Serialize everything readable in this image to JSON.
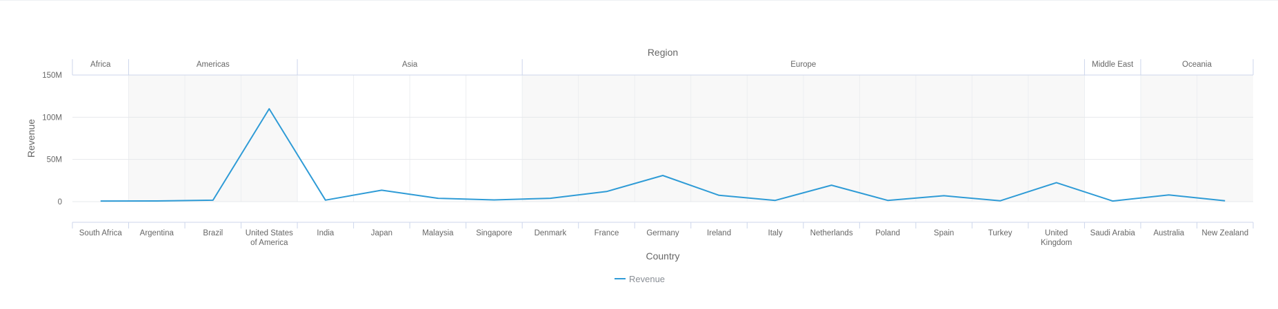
{
  "chart_data": {
    "type": "line",
    "title": "",
    "xlabel": "Country",
    "ylabel": "Revenue",
    "group_axis_label": "Region",
    "ylim": [
      0,
      150000000
    ],
    "yticks": [
      {
        "value": 0,
        "label": "0"
      },
      {
        "value": 50000000,
        "label": "50M"
      },
      {
        "value": 100000000,
        "label": "100M"
      },
      {
        "value": 150000000,
        "label": "150M"
      }
    ],
    "grid": true,
    "legend_position": "bottom",
    "regions": [
      {
        "name": "Africa",
        "count": 1
      },
      {
        "name": "Americas",
        "count": 3
      },
      {
        "name": "Asia",
        "count": 4
      },
      {
        "name": "Europe",
        "count": 10
      },
      {
        "name": "Middle East",
        "count": 1
      },
      {
        "name": "Oceania",
        "count": 2
      }
    ],
    "categories": [
      [
        "South Africa"
      ],
      [
        "Argentina"
      ],
      [
        "Brazil"
      ],
      [
        "United States",
        "of America"
      ],
      [
        "India"
      ],
      [
        "Japan"
      ],
      [
        "Malaysia"
      ],
      [
        "Singapore"
      ],
      [
        "Denmark"
      ],
      [
        "France"
      ],
      [
        "Germany"
      ],
      [
        "Ireland"
      ],
      [
        "Italy"
      ],
      [
        "Netherlands"
      ],
      [
        "Poland"
      ],
      [
        "Spain"
      ],
      [
        "Turkey"
      ],
      [
        "United",
        "Kingdom"
      ],
      [
        "Saudi Arabia"
      ],
      [
        "Australia"
      ],
      [
        "New Zealand"
      ]
    ],
    "series": [
      {
        "name": "Revenue",
        "color": "#2e9bd6",
        "values": [
          700000,
          800000,
          1700000,
          110000000,
          1800000,
          13500000,
          4000000,
          2000000,
          4000000,
          12000000,
          31000000,
          7500000,
          1500000,
          19500000,
          1500000,
          7000000,
          1000000,
          22500000,
          700000,
          8000000,
          1000000
        ]
      }
    ]
  }
}
